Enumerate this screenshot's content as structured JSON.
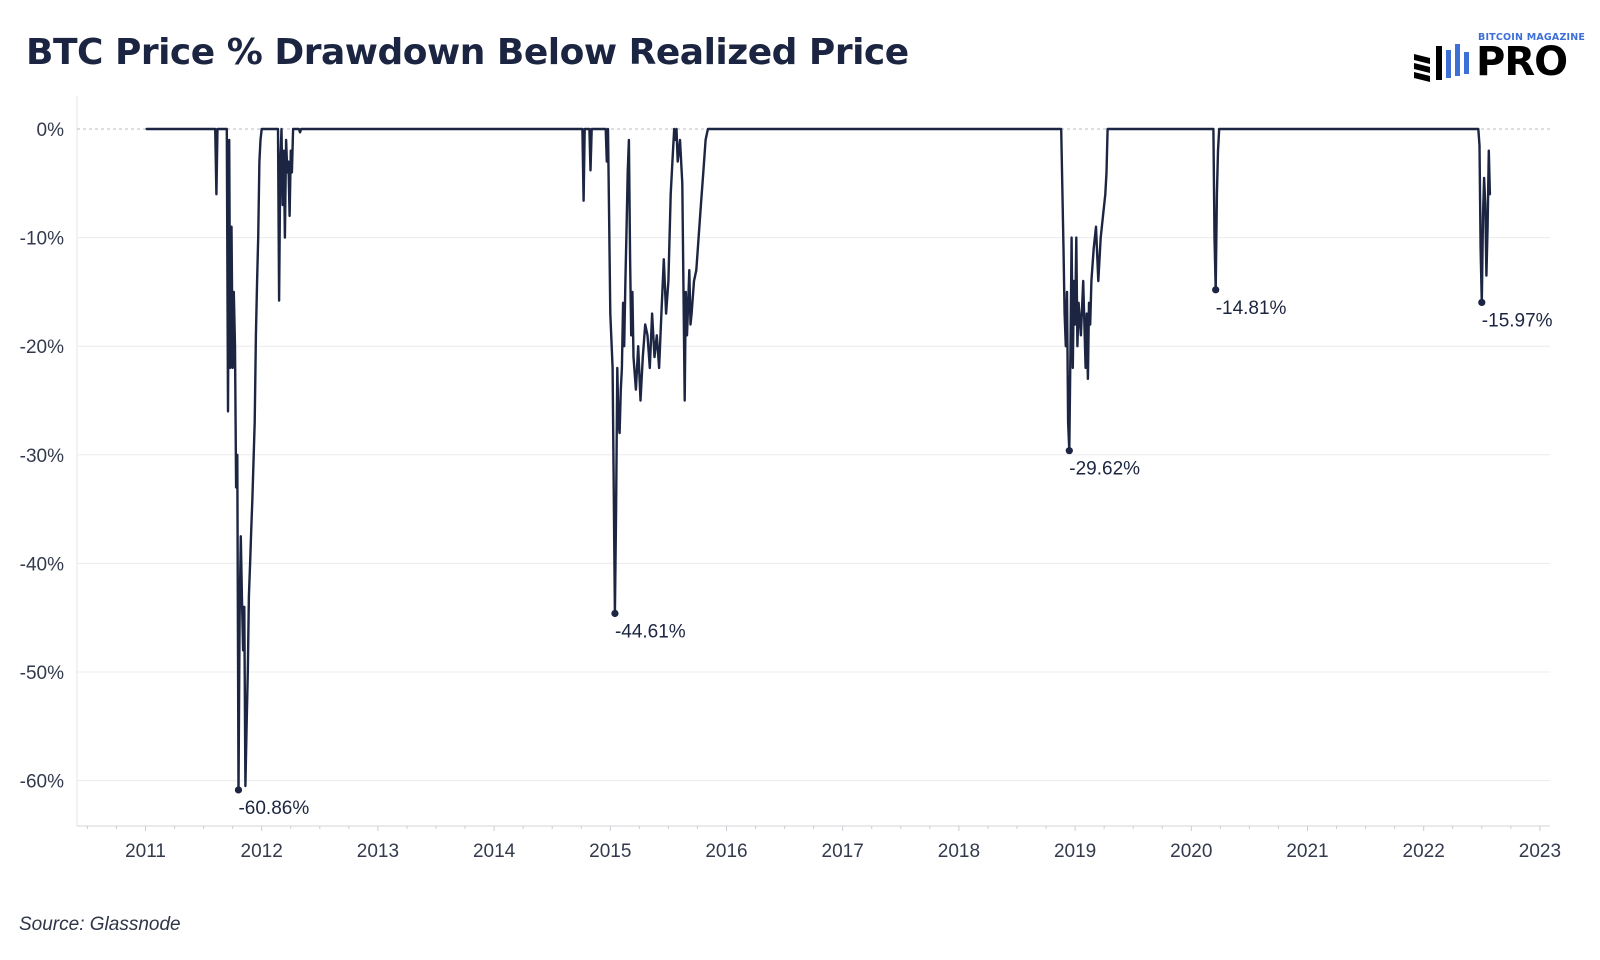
{
  "chart_data": {
    "type": "line",
    "title": "BTC Price % Drawdown Below Realized Price",
    "source": "Source: Glassnode",
    "xlabel": "",
    "ylabel": "",
    "xlim": [
      2010.4,
      2023.2
    ],
    "ylim": [
      -64,
      3
    ],
    "x_ticks": [
      2011,
      2012,
      2013,
      2014,
      2015,
      2016,
      2017,
      2018,
      2019,
      2020,
      2021,
      2022,
      2023
    ],
    "x_tick_labels": [
      "2011",
      "2012",
      "2013",
      "2014",
      "2015",
      "2016",
      "2017",
      "2018",
      "2019",
      "2020",
      "2021",
      "2022",
      "2023"
    ],
    "y_ticks": [
      0,
      -10,
      -20,
      -30,
      -40,
      -50,
      -60
    ],
    "y_tick_labels": [
      "0%",
      "-10%",
      "-20%",
      "-30%",
      "-40%",
      "-50%",
      "-60%"
    ],
    "grid": true,
    "legend": "none",
    "line_color": "#1c2541",
    "zero_line_color": "#b9bcc4",
    "series": [
      {
        "points": [
          [
            2011.01,
            0
          ],
          [
            2011.6,
            0
          ],
          [
            2011.61,
            -6
          ],
          [
            2011.62,
            0
          ],
          [
            2011.7,
            0
          ],
          [
            2011.71,
            -26
          ],
          [
            2011.72,
            -1
          ],
          [
            2011.73,
            -22
          ],
          [
            2011.74,
            -9
          ],
          [
            2011.75,
            -22
          ],
          [
            2011.76,
            -15
          ],
          [
            2011.77,
            -20
          ],
          [
            2011.78,
            -33
          ],
          [
            2011.79,
            -30
          ],
          [
            2011.8,
            -61
          ],
          [
            2011.81,
            -45
          ],
          [
            2011.82,
            -37.5
          ],
          [
            2011.83,
            -43
          ],
          [
            2011.84,
            -48
          ],
          [
            2011.85,
            -44
          ],
          [
            2011.86,
            -60.5
          ],
          [
            2011.87,
            -55
          ],
          [
            2011.88,
            -50
          ],
          [
            2011.89,
            -43
          ],
          [
            2011.9,
            -40
          ],
          [
            2011.91,
            -37
          ],
          [
            2011.92,
            -34
          ],
          [
            2011.94,
            -27
          ],
          [
            2011.95,
            -19
          ],
          [
            2011.96,
            -14
          ],
          [
            2011.97,
            -10
          ],
          [
            2011.98,
            -3
          ],
          [
            2011.99,
            -1
          ],
          [
            2012.0,
            0
          ],
          [
            2012.14,
            0
          ],
          [
            2012.15,
            -15.8
          ],
          [
            2012.16,
            -3
          ],
          [
            2012.17,
            0
          ],
          [
            2012.18,
            -7
          ],
          [
            2012.19,
            -2
          ],
          [
            2012.2,
            -10
          ],
          [
            2012.21,
            -1
          ],
          [
            2012.22,
            -4
          ],
          [
            2012.23,
            -3
          ],
          [
            2012.24,
            -8
          ],
          [
            2012.25,
            -2
          ],
          [
            2012.26,
            -4
          ],
          [
            2012.27,
            0
          ],
          [
            2012.32,
            0
          ],
          [
            2012.33,
            -0.3
          ],
          [
            2012.34,
            0
          ],
          [
            2014.76,
            0
          ],
          [
            2014.77,
            -6.6
          ],
          [
            2014.78,
            0
          ],
          [
            2014.82,
            0
          ],
          [
            2014.83,
            -3.8
          ],
          [
            2014.84,
            0
          ],
          [
            2014.96,
            0
          ],
          [
            2014.97,
            -3
          ],
          [
            2014.98,
            0
          ],
          [
            2014.99,
            -8
          ],
          [
            2015.0,
            -17
          ],
          [
            2015.02,
            -22
          ],
          [
            2015.04,
            -44.6
          ],
          [
            2015.05,
            -35
          ],
          [
            2015.06,
            -22
          ],
          [
            2015.07,
            -27
          ],
          [
            2015.08,
            -28
          ],
          [
            2015.09,
            -24
          ],
          [
            2015.1,
            -22
          ],
          [
            2015.11,
            -16
          ],
          [
            2015.12,
            -20
          ],
          [
            2015.13,
            -14
          ],
          [
            2015.14,
            -9
          ],
          [
            2015.15,
            -4
          ],
          [
            2015.16,
            -1
          ],
          [
            2015.17,
            -12
          ],
          [
            2015.18,
            -19
          ],
          [
            2015.19,
            -15
          ],
          [
            2015.2,
            -21
          ],
          [
            2015.22,
            -24
          ],
          [
            2015.24,
            -20
          ],
          [
            2015.26,
            -25
          ],
          [
            2015.28,
            -21
          ],
          [
            2015.3,
            -18
          ],
          [
            2015.32,
            -19
          ],
          [
            2015.34,
            -22
          ],
          [
            2015.36,
            -17
          ],
          [
            2015.38,
            -21
          ],
          [
            2015.4,
            -19
          ],
          [
            2015.42,
            -22
          ],
          [
            2015.44,
            -17
          ],
          [
            2015.46,
            -12
          ],
          [
            2015.48,
            -17
          ],
          [
            2015.5,
            -14
          ],
          [
            2015.52,
            -6
          ],
          [
            2015.54,
            -2
          ],
          [
            2015.55,
            0
          ],
          [
            2015.56,
            -1
          ],
          [
            2015.57,
            0
          ],
          [
            2015.58,
            -3
          ],
          [
            2015.6,
            -1
          ],
          [
            2015.62,
            -5
          ],
          [
            2015.64,
            -25
          ],
          [
            2015.65,
            -15
          ],
          [
            2015.66,
            -19
          ],
          [
            2015.67,
            -16
          ],
          [
            2015.68,
            -13
          ],
          [
            2015.69,
            -18
          ],
          [
            2015.7,
            -17
          ],
          [
            2015.72,
            -14
          ],
          [
            2015.74,
            -13
          ],
          [
            2015.76,
            -10
          ],
          [
            2015.78,
            -7
          ],
          [
            2015.8,
            -4
          ],
          [
            2015.82,
            -1
          ],
          [
            2015.84,
            0
          ],
          [
            2018.88,
            0
          ],
          [
            2018.9,
            -11
          ],
          [
            2018.91,
            -17
          ],
          [
            2018.92,
            -20
          ],
          [
            2018.93,
            -15
          ],
          [
            2018.94,
            -27
          ],
          [
            2018.95,
            -29.6
          ],
          [
            2018.96,
            -20
          ],
          [
            2018.97,
            -10
          ],
          [
            2018.98,
            -22
          ],
          [
            2018.99,
            -14
          ],
          [
            2019.0,
            -18
          ],
          [
            2019.01,
            -10
          ],
          [
            2019.02,
            -20
          ],
          [
            2019.03,
            -16
          ],
          [
            2019.05,
            -19
          ],
          [
            2019.07,
            -14
          ],
          [
            2019.09,
            -22
          ],
          [
            2019.1,
            -17
          ],
          [
            2019.11,
            -23
          ],
          [
            2019.12,
            -16
          ],
          [
            2019.13,
            -18
          ],
          [
            2019.14,
            -14
          ],
          [
            2019.16,
            -11
          ],
          [
            2019.18,
            -9
          ],
          [
            2019.2,
            -14
          ],
          [
            2019.22,
            -10
          ],
          [
            2019.24,
            -8
          ],
          [
            2019.26,
            -6
          ],
          [
            2019.27,
            -4
          ],
          [
            2019.28,
            0
          ],
          [
            2020.19,
            0
          ],
          [
            2020.2,
            -10
          ],
          [
            2020.21,
            -14.8
          ],
          [
            2020.22,
            -6
          ],
          [
            2020.23,
            -2
          ],
          [
            2020.24,
            0
          ],
          [
            2022.47,
            0
          ],
          [
            2022.48,
            -1.5
          ],
          [
            2022.49,
            -11
          ],
          [
            2022.5,
            -16
          ],
          [
            2022.51,
            -8
          ],
          [
            2022.52,
            -4.5
          ],
          [
            2022.53,
            -7
          ],
          [
            2022.54,
            -13.5
          ],
          [
            2022.55,
            -9
          ],
          [
            2022.56,
            -2
          ],
          [
            2022.57,
            -6
          ]
        ]
      }
    ],
    "annotations": [
      {
        "x": 2011.8,
        "y": -60.86,
        "label": "-60.86%"
      },
      {
        "x": 2015.04,
        "y": -44.61,
        "label": "-44.61%"
      },
      {
        "x": 2018.95,
        "y": -29.62,
        "label": "-29.62%"
      },
      {
        "x": 2020.21,
        "y": -14.81,
        "label": "-14.81%"
      },
      {
        "x": 2022.5,
        "y": -15.97,
        "label": "-15.97%"
      }
    ]
  },
  "logo": {
    "top_text": "BITCOIN MAGAZINE",
    "main_text": "PRO"
  }
}
